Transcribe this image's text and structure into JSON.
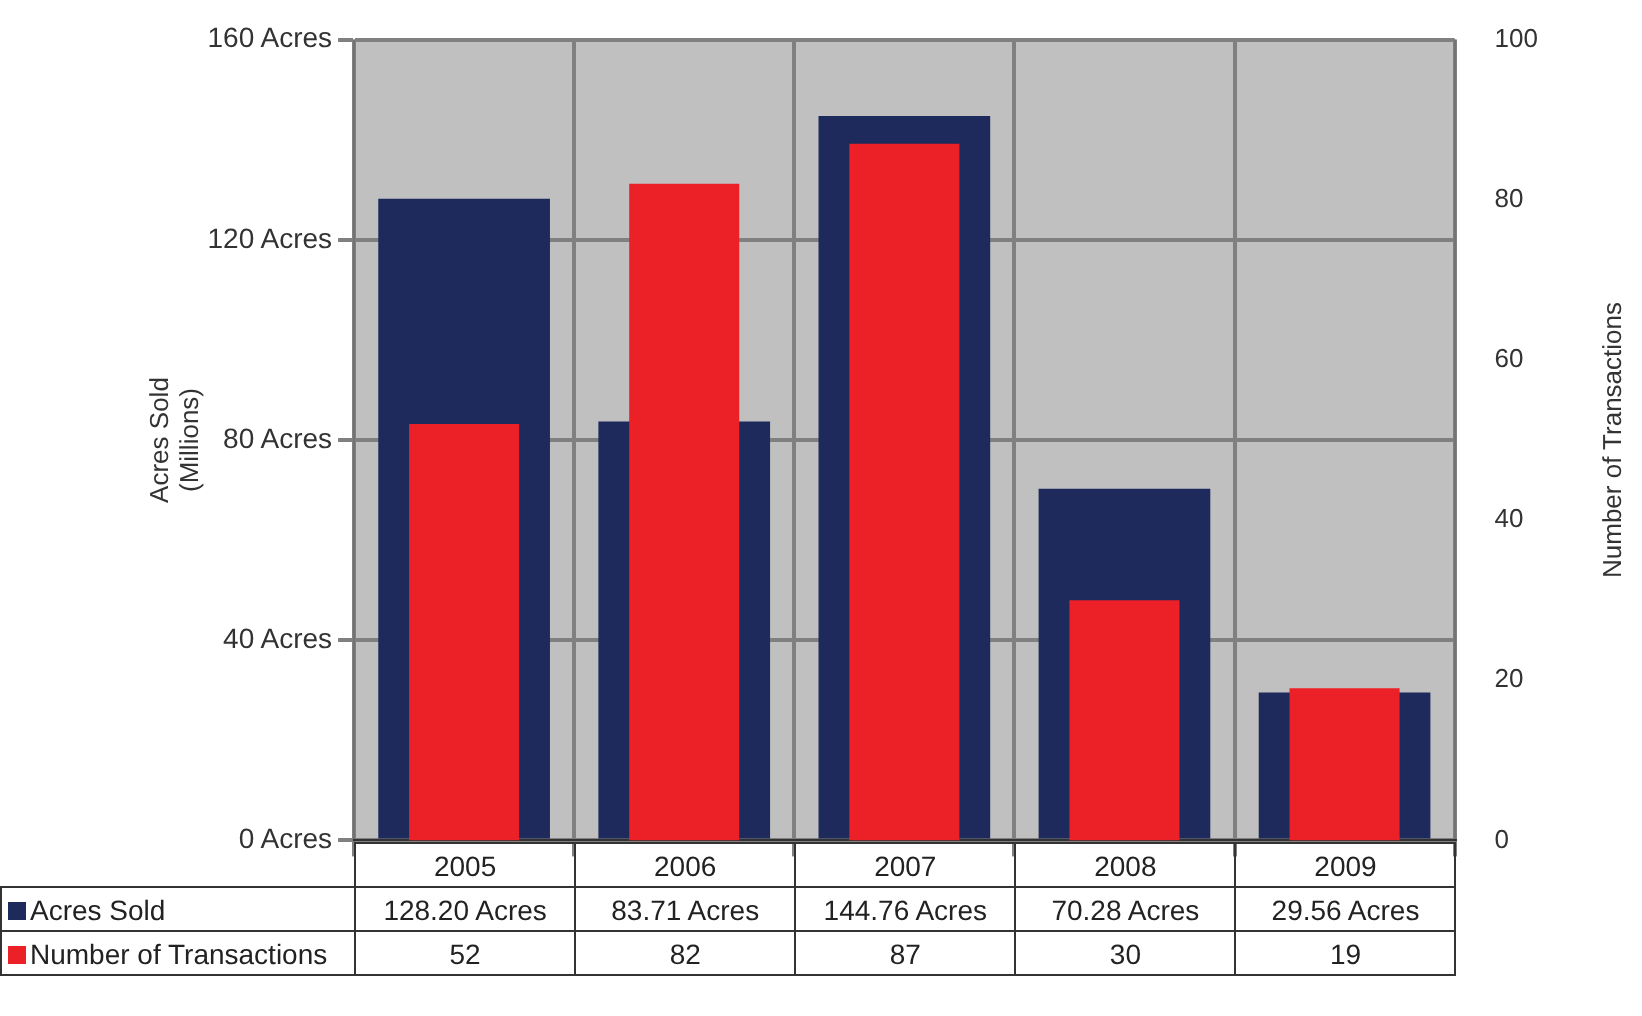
{
  "chart_data": {
    "type": "bar",
    "ylabel": "Acres Sold\n(Millions)",
    "y2label": "Number of Transactions",
    "categories": [
      "2005",
      "2006",
      "2007",
      "2008",
      "2009"
    ],
    "series": [
      {
        "name": "Acres Sold",
        "color": "#1f2a5c",
        "values": [
          128.2,
          83.71,
          144.76,
          70.28,
          29.56
        ],
        "value_labels": [
          "128.20 Acres",
          "83.71 Acres",
          "144.76 Acres",
          "70.28 Acres",
          "29.56 Acres"
        ]
      },
      {
        "name": "Number of Transactions",
        "color": "#ec2027",
        "axis": "y2",
        "values": [
          52,
          82,
          87,
          30,
          19
        ],
        "value_labels": [
          "52",
          "82",
          "87",
          "30",
          "19"
        ]
      }
    ],
    "ylim": [
      0,
      160
    ],
    "yticks": [
      {
        "value": 0,
        "label": "0 Acres"
      },
      {
        "value": 40,
        "label": "40 Acres"
      },
      {
        "value": 80,
        "label": "80 Acres"
      },
      {
        "value": 120,
        "label": "120 Acres"
      },
      {
        "value": 160,
        "label": "160 Acres"
      }
    ],
    "y2lim": [
      0,
      100
    ],
    "y2ticks": [
      0,
      20,
      40,
      60,
      80,
      100
    ],
    "grid": true,
    "legend": "bottom left"
  }
}
